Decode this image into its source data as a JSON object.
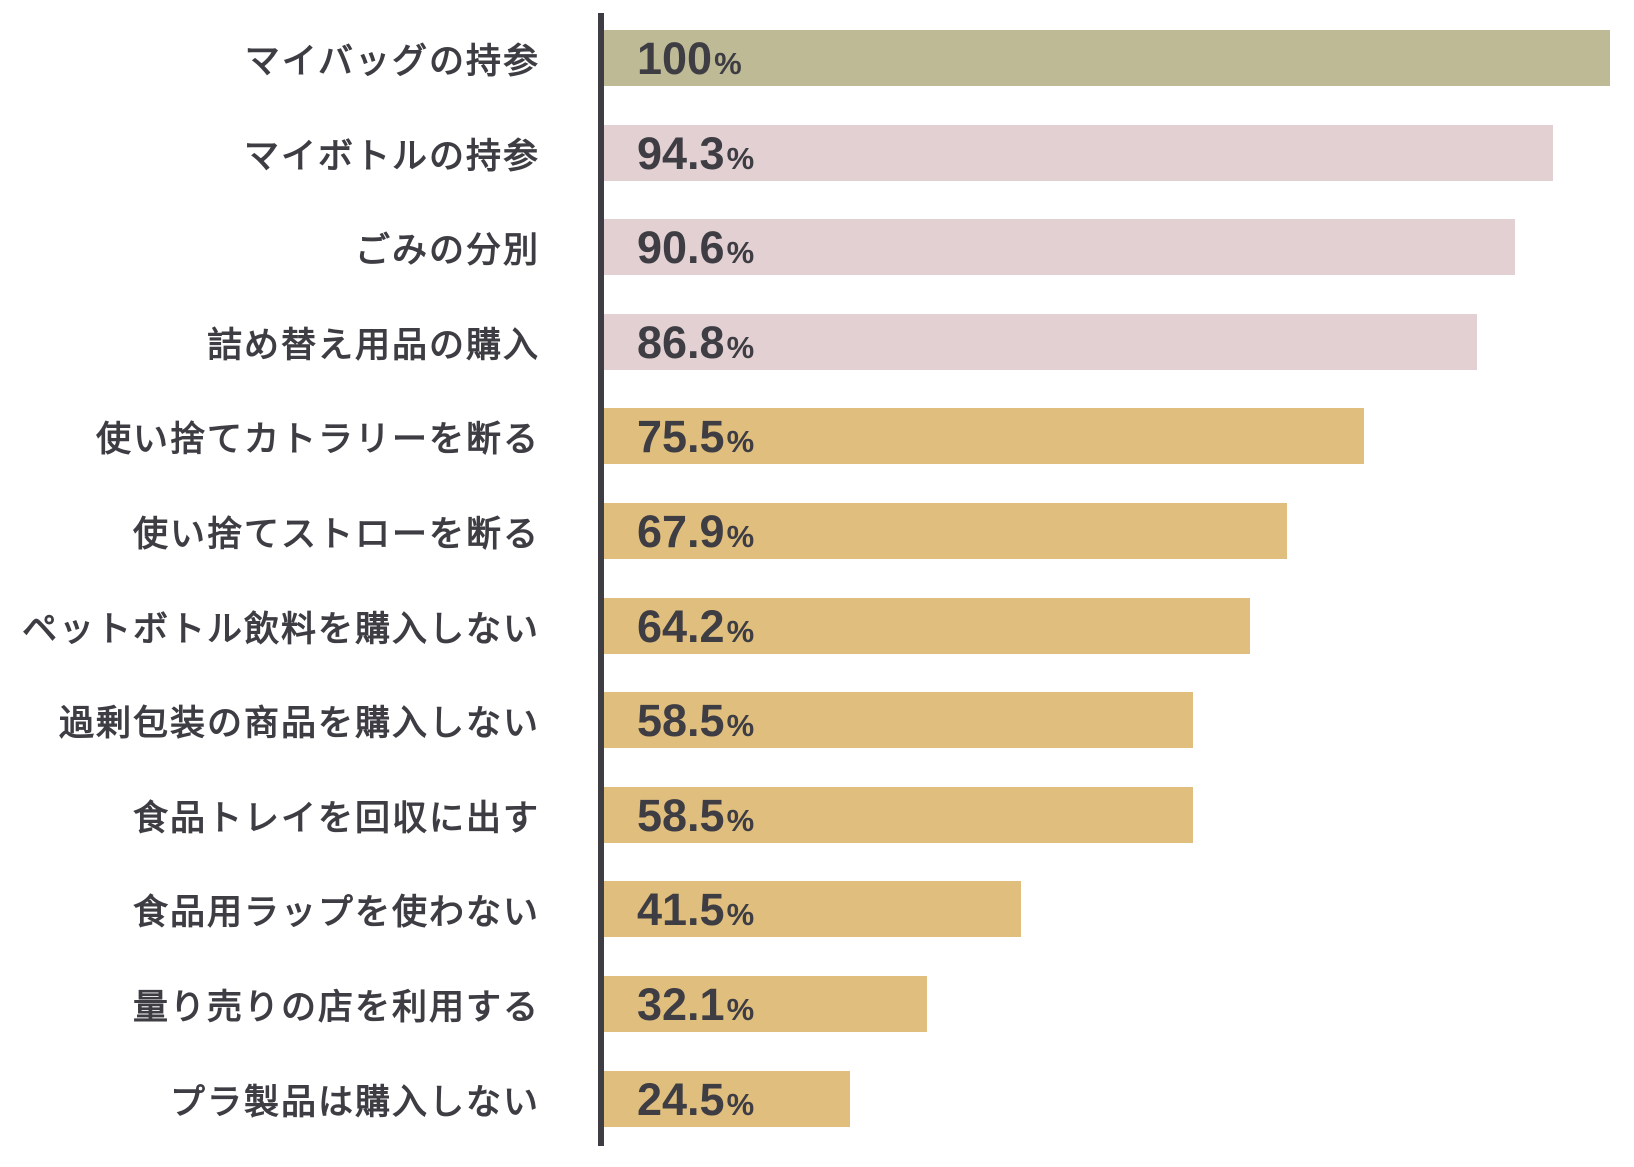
{
  "chart_data": {
    "type": "bar",
    "orientation": "horizontal",
    "title": "",
    "xlabel": "",
    "ylabel": "",
    "xlim": [
      0,
      100
    ],
    "grid": false,
    "legend": false,
    "unit_suffix": "%",
    "categories": [
      "マイバッグの持参",
      "マイボトルの持参",
      "ごみの分別",
      "詰め替え用品の購入",
      "使い捨てカトラリーを断る",
      "使い捨てストローを断る",
      "ペットボトル飲料を購入しない",
      "過剰包装の商品を購入しない",
      "食品トレイを回収に出す",
      "食品用ラップを使わない",
      "量り売りの店を利用する",
      "プラ製品は購入しない"
    ],
    "values": [
      100,
      94.3,
      90.6,
      86.8,
      75.5,
      67.9,
      64.2,
      58.5,
      58.5,
      41.5,
      32.1,
      24.5
    ],
    "value_labels": [
      "100",
      "94.3",
      "90.6",
      "86.8",
      "75.5",
      "67.9",
      "64.2",
      "58.5",
      "58.5",
      "41.5",
      "32.1",
      "24.5"
    ],
    "bar_colors": [
      "#bdba95",
      "#e2d0d2",
      "#e2d0d2",
      "#e2d0d2",
      "#e0bf7e",
      "#e0bf7e",
      "#e0bf7e",
      "#e0bf7e",
      "#e0bf7e",
      "#e0bf7e",
      "#e0bf7e",
      "#e0bf7e"
    ],
    "colors": {
      "green": "#bdba95",
      "pink": "#e2d0d2",
      "gold": "#e0bf7e",
      "text": "#3e3d43",
      "axis": "#3e3d43"
    }
  }
}
